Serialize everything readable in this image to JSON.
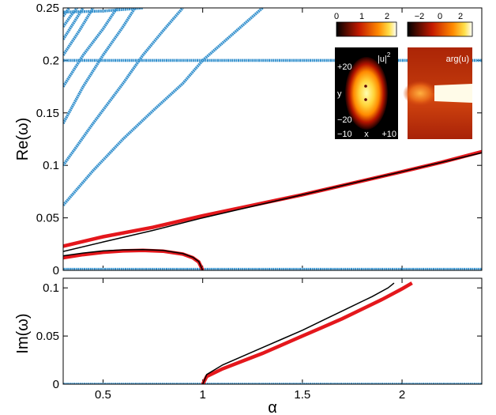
{
  "chart_data": [
    {
      "id": "top",
      "type": "line",
      "ylabel": "Re(ω)",
      "xlabel": "",
      "xlim": [
        0.3,
        2.4
      ],
      "ylim": [
        0,
        0.25
      ],
      "xticks": [],
      "yticks": [
        {
          "v": 0,
          "label": "0"
        },
        {
          "v": 0.05,
          "label": "0.05"
        },
        {
          "v": 0.1,
          "label": "0.1"
        },
        {
          "v": 0.15,
          "label": "0.15"
        },
        {
          "v": 0.2,
          "label": "0.2"
        },
        {
          "v": 0.25,
          "label": "0.25"
        }
      ],
      "series": [
        {
          "style": "blue",
          "points": [
            [
              0.3,
              0.2
            ],
            [
              2.4,
              0.2
            ]
          ]
        },
        {
          "style": "blue",
          "points": [
            [
              0.3,
              0.001
            ],
            [
              2.4,
              0.001
            ]
          ]
        },
        {
          "style": "blue",
          "points": [
            [
              0.3,
              0.062
            ],
            [
              0.45,
              0.095
            ],
            [
              0.6,
              0.125
            ],
            [
              0.75,
              0.152
            ],
            [
              0.9,
              0.178
            ],
            [
              1.0,
              0.2
            ],
            [
              1.15,
              0.225
            ],
            [
              1.3,
              0.25
            ]
          ]
        },
        {
          "style": "blue",
          "points": [
            [
              0.3,
              0.1
            ],
            [
              0.45,
              0.14
            ],
            [
              0.6,
              0.178
            ],
            [
              0.7,
              0.205
            ],
            [
              0.8,
              0.228
            ],
            [
              0.9,
              0.25
            ]
          ]
        },
        {
          "style": "blue",
          "points": [
            [
              0.3,
              0.14
            ],
            [
              0.4,
              0.175
            ],
            [
              0.5,
              0.205
            ],
            [
              0.6,
              0.232
            ],
            [
              0.66,
              0.25
            ]
          ]
        },
        {
          "style": "blue",
          "points": [
            [
              0.3,
              0.175
            ],
            [
              0.4,
              0.205
            ],
            [
              0.5,
              0.23
            ],
            [
              0.57,
              0.25
            ]
          ]
        },
        {
          "style": "blue",
          "points": [
            [
              0.3,
              0.205
            ],
            [
              0.38,
              0.228
            ],
            [
              0.45,
              0.25
            ]
          ]
        },
        {
          "style": "blue",
          "points": [
            [
              0.3,
              0.22
            ],
            [
              0.36,
              0.238
            ],
            [
              0.4,
              0.25
            ]
          ]
        },
        {
          "style": "blue",
          "points": [
            [
              0.3,
              0.232
            ],
            [
              0.34,
              0.243
            ],
            [
              0.37,
              0.25
            ]
          ]
        },
        {
          "style": "blue",
          "points": [
            [
              0.3,
              0.242
            ],
            [
              0.33,
              0.25
            ]
          ]
        },
        {
          "style": "blue",
          "points": [
            [
              0.3,
              0.246
            ],
            [
              0.5,
              0.247
            ],
            [
              0.7,
              0.25
            ]
          ]
        },
        {
          "style": "red",
          "points": [
            [
              0.3,
              0.023
            ],
            [
              0.5,
              0.032
            ],
            [
              0.75,
              0.041
            ],
            [
              1.0,
              0.052
            ],
            [
              1.25,
              0.062
            ],
            [
              1.5,
              0.072
            ],
            [
              1.75,
              0.083
            ],
            [
              2.0,
              0.094
            ],
            [
              2.2,
              0.103
            ],
            [
              2.4,
              0.113
            ]
          ]
        },
        {
          "style": "black",
          "points": [
            [
              0.3,
              0.018
            ],
            [
              0.5,
              0.027
            ],
            [
              0.75,
              0.038
            ],
            [
              1.0,
              0.05
            ],
            [
              1.25,
              0.061
            ],
            [
              1.5,
              0.072
            ],
            [
              1.75,
              0.083
            ],
            [
              2.0,
              0.094
            ],
            [
              2.2,
              0.103
            ],
            [
              2.4,
              0.112
            ]
          ]
        },
        {
          "style": "red",
          "points": [
            [
              0.3,
              0.012
            ],
            [
              0.4,
              0.015
            ],
            [
              0.5,
              0.0172
            ],
            [
              0.6,
              0.0185
            ],
            [
              0.7,
              0.019
            ],
            [
              0.8,
              0.0183
            ],
            [
              0.9,
              0.0155
            ],
            [
              0.95,
              0.012
            ],
            [
              0.98,
              0.008
            ],
            [
              1.0,
              0.0
            ]
          ]
        },
        {
          "style": "black",
          "points": [
            [
              0.3,
              0.0138
            ],
            [
              0.4,
              0.0165
            ],
            [
              0.5,
              0.0185
            ],
            [
              0.6,
              0.0195
            ],
            [
              0.7,
              0.0198
            ],
            [
              0.8,
              0.019
            ],
            [
              0.9,
              0.016
            ],
            [
              0.95,
              0.0125
            ],
            [
              0.98,
              0.0085
            ],
            [
              1.0,
              0.0
            ]
          ]
        }
      ]
    },
    {
      "id": "bottom",
      "type": "line",
      "ylabel": "Im(ω)",
      "xlabel": "α",
      "xlim": [
        0.3,
        2.4
      ],
      "ylim": [
        0,
        0.11
      ],
      "xticks": [
        {
          "v": 0.5,
          "label": "0.5"
        },
        {
          "v": 1,
          "label": "1"
        },
        {
          "v": 1.5,
          "label": "1.5"
        },
        {
          "v": 2,
          "label": "2"
        }
      ],
      "yticks": [
        {
          "v": 0,
          "label": "0"
        },
        {
          "v": 0.05,
          "label": "0.05"
        },
        {
          "v": 0.1,
          "label": "0.1"
        }
      ],
      "series": [
        {
          "style": "blue",
          "points": [
            [
              0.3,
              0.0
            ],
            [
              2.4,
              0.0
            ]
          ]
        },
        {
          "style": "red",
          "points": [
            [
              1.0,
              0.0
            ],
            [
              1.02,
              0.008
            ],
            [
              1.1,
              0.016
            ],
            [
              1.2,
              0.024
            ],
            [
              1.3,
              0.032
            ],
            [
              1.4,
              0.041
            ],
            [
              1.5,
              0.05
            ],
            [
              1.6,
              0.059
            ],
            [
              1.7,
              0.068
            ],
            [
              1.8,
              0.078
            ],
            [
              1.9,
              0.088
            ],
            [
              2.0,
              0.099
            ],
            [
              2.05,
              0.105
            ]
          ]
        },
        {
          "style": "black",
          "points": [
            [
              1.0,
              0.0
            ],
            [
              1.02,
              0.01
            ],
            [
              1.1,
              0.02
            ],
            [
              1.2,
              0.029
            ],
            [
              1.3,
              0.038
            ],
            [
              1.4,
              0.047
            ],
            [
              1.5,
              0.056
            ],
            [
              1.6,
              0.066
            ],
            [
              1.7,
              0.076
            ],
            [
              1.8,
              0.086
            ],
            [
              1.85,
              0.091
            ],
            [
              1.93,
              0.1
            ],
            [
              1.96,
              0.105
            ]
          ]
        }
      ]
    }
  ],
  "insets": {
    "colorbar_density": {
      "ticks": [
        "0",
        "1",
        "2"
      ],
      "colormap": "hot"
    },
    "colorbar_phase": {
      "ticks": [
        "−2",
        "0",
        "2"
      ],
      "colormap": "hot"
    },
    "density_panel": {
      "label": "|u|",
      "label_exp": "2",
      "xlabel": "x",
      "ylabel": "y",
      "xticks": [
        "−10",
        "+10"
      ],
      "yticks": [
        "+20",
        "0",
        "−20"
      ]
    },
    "phase_panel": {
      "label": "arg(u)"
    }
  },
  "colors": {
    "blue": "#3a94cf",
    "red": "#e4171c",
    "black": "#000000"
  }
}
